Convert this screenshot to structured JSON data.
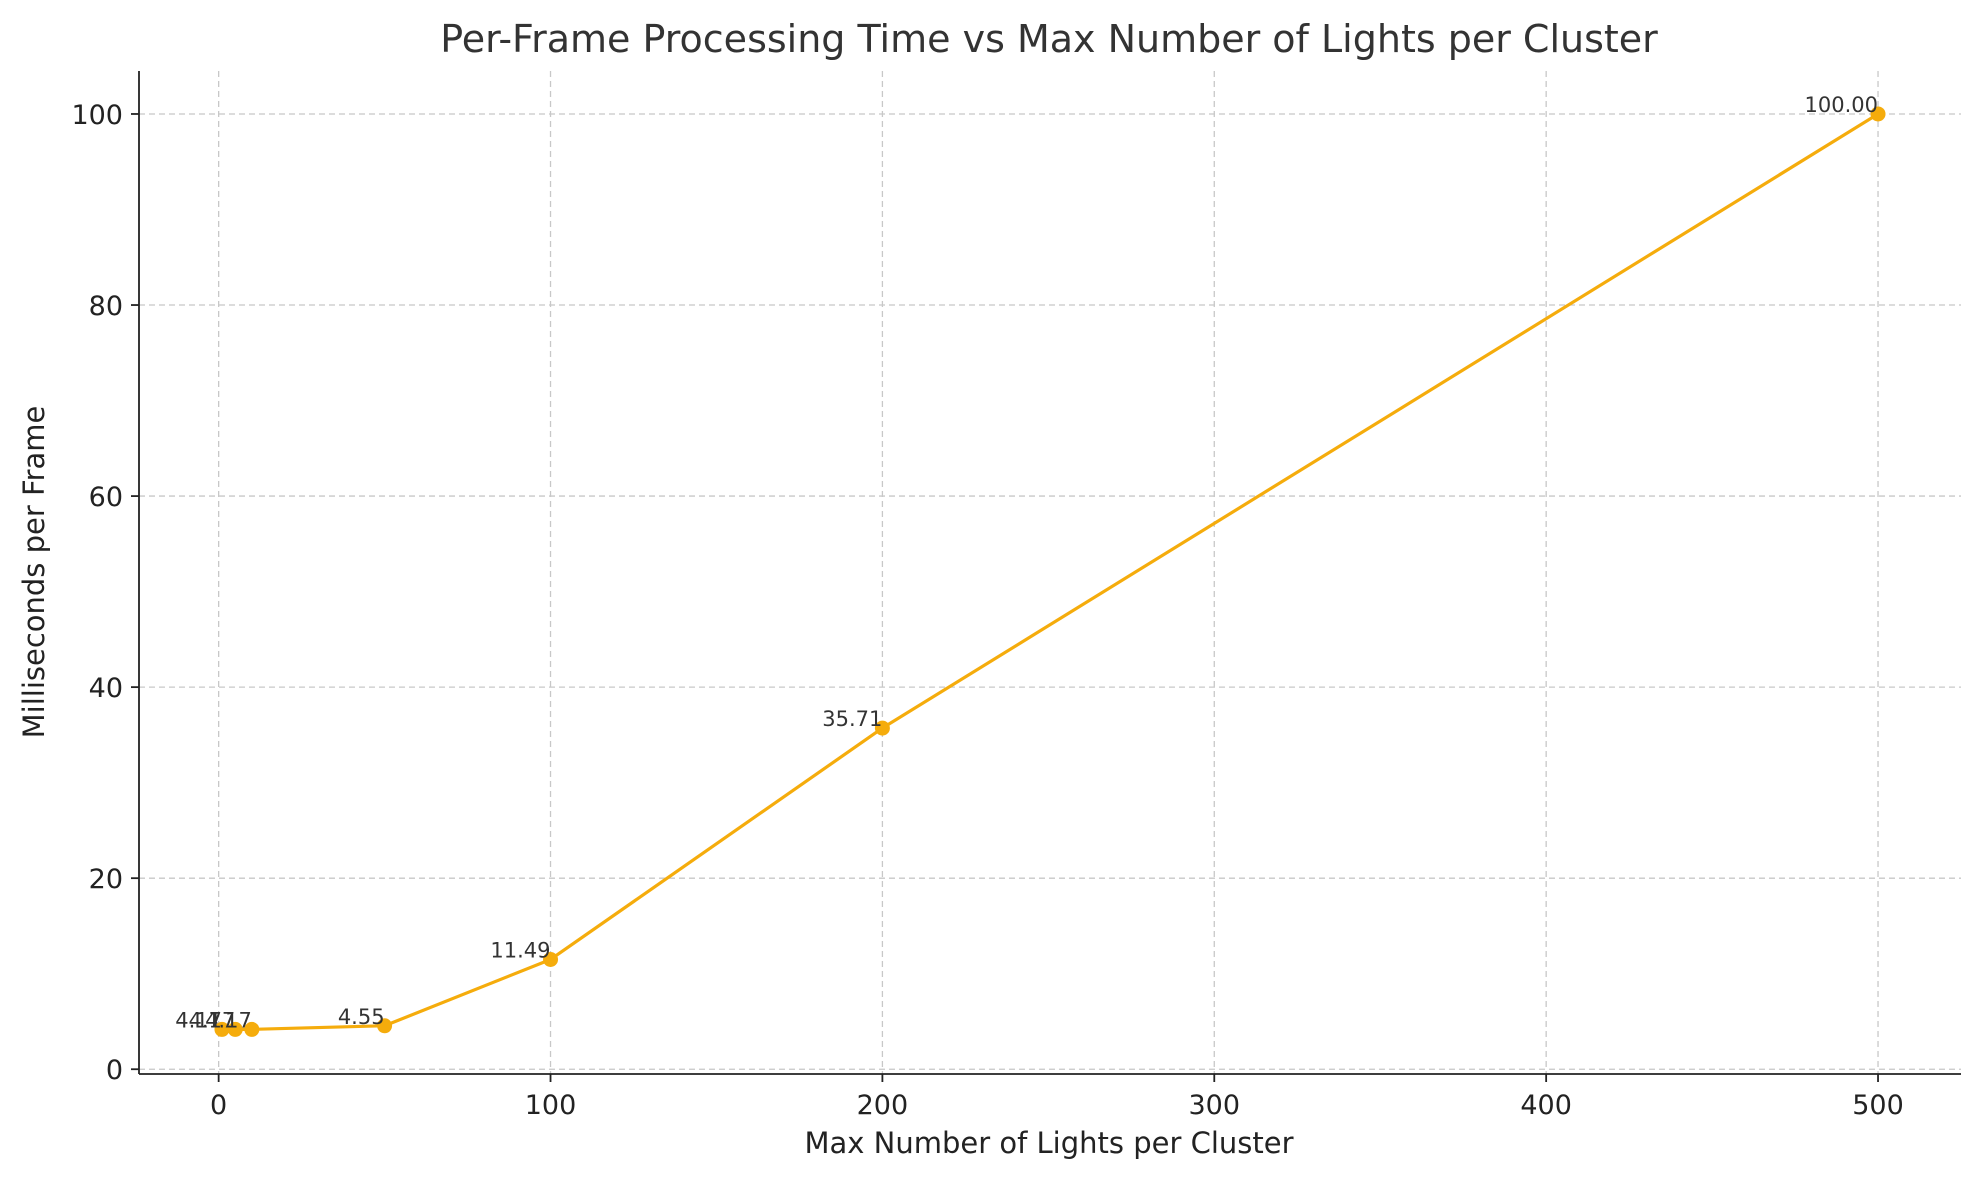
{
  "chart_data": {
    "type": "line",
    "title": "Per-Frame Processing Time vs Max Number of Lights per Cluster",
    "xlabel": "Max Number of Lights per Cluster",
    "ylabel": "Milliseconds per Frame",
    "xlim": [
      -24,
      525
    ],
    "ylim": [
      -0.5,
      104.5
    ],
    "xticks": [
      0,
      100,
      200,
      300,
      400,
      500
    ],
    "yticks": [
      0,
      20,
      40,
      60,
      80,
      100
    ],
    "grid": true,
    "series": [
      {
        "color": "#f5ac0c",
        "x": [
          1,
          5,
          10,
          50,
          100,
          200,
          500
        ],
        "y": [
          4.17,
          4.17,
          4.17,
          4.55,
          11.49,
          35.71,
          100.0
        ],
        "labels": [
          "4.17",
          "4.17",
          "4.17",
          "4.55",
          "11.49",
          "35.71",
          "100.00"
        ]
      }
    ]
  }
}
